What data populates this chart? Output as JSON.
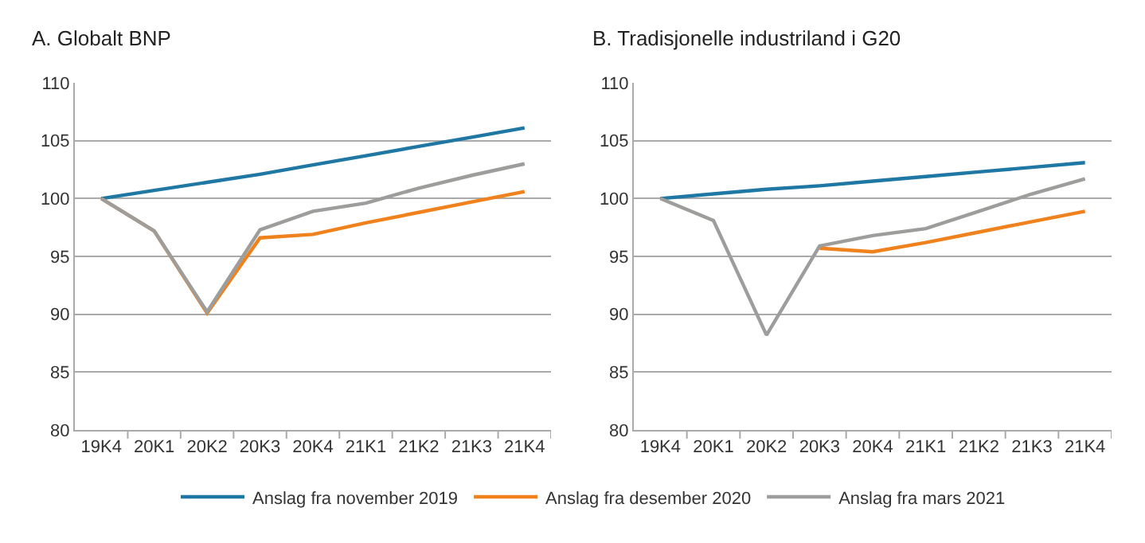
{
  "chart_data": [
    {
      "type": "line",
      "title": "A. Globalt BNP",
      "categories": [
        "19K4",
        "20K1",
        "20K2",
        "20K3",
        "20K4",
        "21K1",
        "21K2",
        "21K3",
        "21K4"
      ],
      "ylim": [
        80,
        110
      ],
      "yticks": [
        80,
        85,
        90,
        95,
        100,
        105,
        110
      ],
      "grid": "y",
      "legend": "bottom",
      "series": [
        {
          "name": "Anslag fra november 2019",
          "color": "#1f77a4",
          "values": [
            100,
            100.7,
            101.4,
            102.1,
            102.9,
            103.7,
            104.5,
            105.3,
            106.1
          ]
        },
        {
          "name": "Anslag fra desember 2020",
          "color": "#f0821e",
          "values": [
            100,
            97.2,
            90.1,
            96.6,
            96.9,
            97.9,
            98.8,
            99.7,
            100.6
          ]
        },
        {
          "name": "Anslag fra mars 2021",
          "color": "#9d9d9c",
          "values": [
            100,
            97.2,
            90.2,
            97.3,
            98.9,
            99.6,
            100.9,
            102.0,
            103.0
          ]
        }
      ]
    },
    {
      "type": "line",
      "title": "B. Tradisjonelle industriland i G20",
      "categories": [
        "19K4",
        "20K1",
        "20K2",
        "20K3",
        "20K4",
        "21K1",
        "21K2",
        "21K3",
        "21K4"
      ],
      "ylim": [
        80,
        110
      ],
      "yticks": [
        80,
        85,
        90,
        95,
        100,
        105,
        110
      ],
      "grid": "y",
      "series": [
        {
          "color": "#1f77a4",
          "values": [
            100,
            100.4,
            100.8,
            101.1,
            101.5,
            101.9,
            102.3,
            102.7,
            103.1
          ]
        },
        {
          "color": "#f0821e",
          "values": [
            null,
            null,
            null,
            95.7,
            95.4,
            96.2,
            97.1,
            98.0,
            98.9
          ]
        },
        {
          "color": "#9d9d9c",
          "values": [
            100,
            98.1,
            88.2,
            95.9,
            96.8,
            97.4,
            98.9,
            100.4,
            101.7
          ]
        }
      ]
    }
  ]
}
